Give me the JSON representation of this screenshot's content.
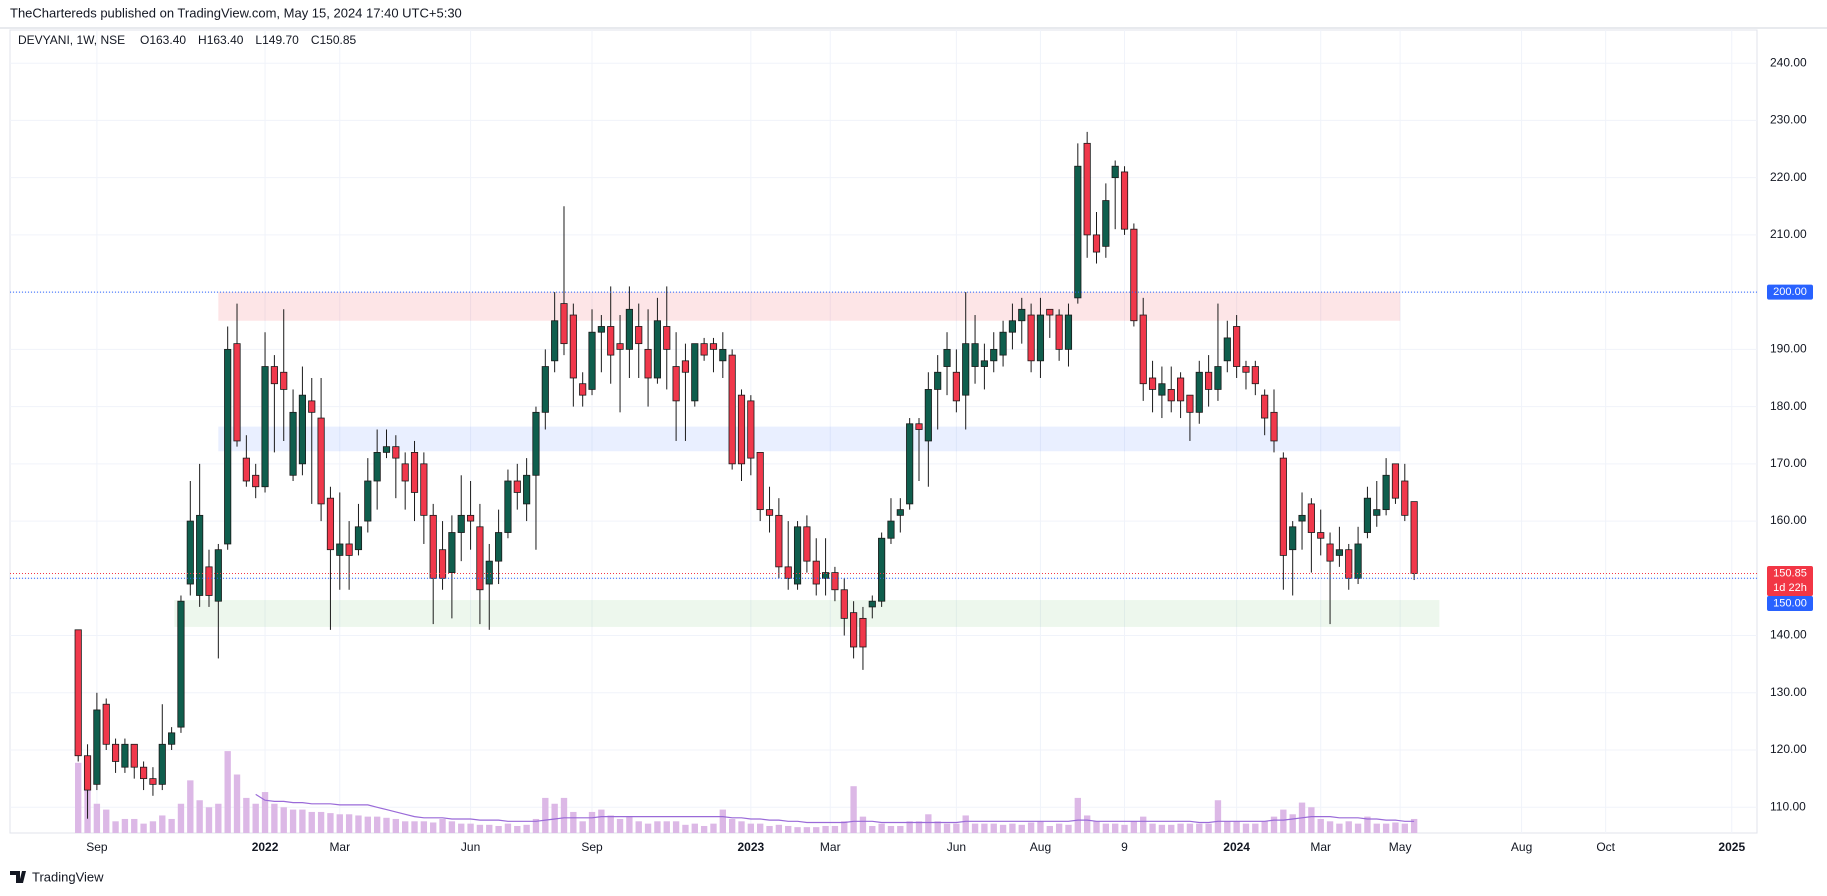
{
  "header": "TheChartereds published on TradingView.com, May 15, 2024 17:40 UTC+5:30",
  "footer": "TradingView",
  "chart_data": {
    "type": "candlestick",
    "symbol": "DEVYANI, 1W, NSE",
    "ohlc_labels": [
      "O163.40",
      "H163.40",
      "L149.70",
      "C150.85"
    ],
    "up_color": "#0f5e4d",
    "down_color": "#f0384b",
    "wick_color": "#1a1a1a",
    "ylim": [
      105.5,
      245.8
    ],
    "yticks": [
      {
        "value": 110,
        "label": "110.00"
      },
      {
        "value": 120,
        "label": "120.00"
      },
      {
        "value": 130,
        "label": "130.00"
      },
      {
        "value": 140,
        "label": "140.00"
      },
      {
        "value": 150,
        "label": "150.00"
      },
      {
        "value": 160,
        "label": "160.00"
      },
      {
        "value": 170,
        "label": "170.00"
      },
      {
        "value": 180,
        "label": "180.00"
      },
      {
        "value": 190,
        "label": "190.00"
      },
      {
        "value": 200,
        "label": "200.00"
      },
      {
        "value": 210,
        "label": "210.00"
      },
      {
        "value": 220,
        "label": "220.00"
      },
      {
        "value": 230,
        "label": "230.00"
      },
      {
        "value": 240,
        "label": "240.00"
      }
    ],
    "xlim": [
      -7.3,
      179.7
    ],
    "xticks": [
      {
        "value": 2,
        "label": "Sep"
      },
      {
        "value": 20,
        "label": "2022"
      },
      {
        "value": 28,
        "label": "Mar"
      },
      {
        "value": 42,
        "label": "Jun"
      },
      {
        "value": 55,
        "label": "Sep"
      },
      {
        "value": 72,
        "label": "2023"
      },
      {
        "value": 80.5,
        "label": "Mar"
      },
      {
        "value": 94,
        "label": "Jun"
      },
      {
        "value": 103,
        "label": "Aug"
      },
      {
        "value": 112,
        "label": "9"
      },
      {
        "value": 124,
        "label": "2024"
      },
      {
        "value": 133,
        "label": "Mar"
      },
      {
        "value": 141.5,
        "label": "May"
      },
      {
        "value": 154.5,
        "label": "Aug"
      },
      {
        "value": 163.5,
        "label": "Oct"
      },
      {
        "value": 177,
        "label": "2025"
      }
    ],
    "grid": true,
    "candles": [
      [
        141,
        141,
        118,
        119
      ],
      [
        119,
        121,
        108,
        113
      ],
      [
        114,
        130,
        113,
        127
      ],
      [
        128,
        129,
        120,
        121
      ],
      [
        121,
        122,
        116,
        118
      ],
      [
        117,
        122,
        116,
        121
      ],
      [
        121,
        121,
        115,
        117
      ],
      [
        117,
        118,
        113,
        115
      ],
      [
        115,
        117,
        112,
        114
      ],
      [
        114,
        128,
        113,
        121
      ],
      [
        121,
        124,
        120,
        123
      ],
      [
        124,
        147,
        123,
        146
      ],
      [
        149,
        167,
        147,
        160
      ],
      [
        147,
        170,
        145,
        161
      ],
      [
        152,
        155,
        145,
        147
      ],
      [
        146,
        156,
        136,
        155
      ],
      [
        156,
        194,
        155,
        190
      ],
      [
        191,
        198,
        173,
        174
      ],
      [
        171,
        175,
        166,
        167
      ],
      [
        168,
        170,
        164,
        166
      ],
      [
        166,
        193,
        165,
        187
      ],
      [
        187,
        189,
        172,
        184
      ],
      [
        186,
        197,
        174,
        183
      ],
      [
        168,
        183,
        167,
        179
      ],
      [
        170,
        187,
        168,
        182
      ],
      [
        181,
        185,
        163,
        179
      ],
      [
        178,
        185,
        160,
        163
      ],
      [
        164,
        166,
        141,
        155
      ],
      [
        154,
        165,
        148,
        156
      ],
      [
        156,
        160,
        148,
        154
      ],
      [
        155,
        163,
        154,
        159
      ],
      [
        160,
        171,
        158,
        167
      ],
      [
        167,
        176,
        162,
        172
      ],
      [
        172,
        176,
        171,
        173
      ],
      [
        173,
        175,
        164,
        171
      ],
      [
        170,
        172,
        162,
        167
      ],
      [
        172,
        174,
        160,
        165
      ],
      [
        170,
        172,
        156,
        161
      ],
      [
        161,
        163,
        142,
        150
      ],
      [
        155,
        160,
        148,
        150
      ],
      [
        151,
        161,
        143,
        158
      ],
      [
        158,
        168,
        153,
        161
      ],
      [
        161,
        167,
        155,
        160
      ],
      [
        159,
        163,
        142,
        148
      ],
      [
        149,
        156,
        141,
        153
      ],
      [
        153,
        162,
        149,
        158
      ],
      [
        158,
        169,
        157,
        167
      ],
      [
        167,
        170,
        162,
        165
      ],
      [
        163,
        171,
        160,
        168
      ],
      [
        168,
        180,
        155,
        179
      ],
      [
        179,
        190,
        176,
        187
      ],
      [
        188,
        200,
        186,
        195
      ],
      [
        198,
        215,
        189,
        191
      ],
      [
        196,
        198,
        180,
        185
      ],
      [
        184,
        186,
        180,
        182
      ],
      [
        183,
        197,
        182,
        193
      ],
      [
        193,
        196,
        186,
        194
      ],
      [
        194,
        201,
        184,
        189
      ],
      [
        191,
        196,
        179,
        190
      ],
      [
        190,
        201,
        185,
        197
      ],
      [
        194,
        198,
        185,
        191
      ],
      [
        190,
        197,
        180,
        185
      ],
      [
        185,
        199,
        184,
        195
      ],
      [
        194,
        201,
        183,
        190
      ],
      [
        187,
        193,
        174,
        181
      ],
      [
        188,
        191,
        174,
        186
      ],
      [
        181,
        191,
        180,
        191
      ],
      [
        191,
        192,
        188,
        189
      ],
      [
        191,
        192,
        186,
        190
      ],
      [
        188,
        193,
        185,
        190
      ],
      [
        189,
        190,
        169,
        170
      ],
      [
        182,
        183,
        167,
        170
      ],
      [
        181,
        182,
        168,
        171
      ],
      [
        172,
        172,
        160,
        162
      ],
      [
        162,
        166,
        158,
        161
      ],
      [
        161,
        164,
        150,
        152
      ],
      [
        152,
        160,
        148,
        150
      ],
      [
        149,
        160,
        148,
        159
      ],
      [
        159,
        161,
        151,
        153
      ],
      [
        153,
        157,
        147,
        149
      ],
      [
        150,
        157,
        147,
        151
      ],
      [
        151,
        152,
        146,
        148
      ],
      [
        148,
        150,
        140,
        143
      ],
      [
        144,
        146,
        136,
        138
      ],
      [
        143,
        145,
        134,
        138
      ],
      [
        145,
        147,
        143,
        146
      ],
      [
        146,
        158,
        145,
        157
      ],
      [
        157,
        164,
        156,
        160
      ],
      [
        161,
        164,
        158,
        162
      ],
      [
        163,
        178,
        162,
        177
      ],
      [
        177,
        178,
        167,
        176
      ],
      [
        174,
        186,
        166,
        183
      ],
      [
        183,
        189,
        176,
        186
      ],
      [
        187,
        193,
        182,
        190
      ],
      [
        186,
        190,
        179,
        181
      ],
      [
        182,
        200,
        176,
        191
      ],
      [
        187,
        196,
        184,
        191
      ],
      [
        187,
        191,
        183,
        188
      ],
      [
        188,
        193,
        186,
        190
      ],
      [
        189,
        195,
        187,
        193
      ],
      [
        193,
        198,
        190,
        195
      ],
      [
        195,
        199,
        191,
        197
      ],
      [
        196,
        198,
        186,
        188
      ],
      [
        188,
        199,
        185,
        196
      ],
      [
        197,
        197,
        192,
        196
      ],
      [
        196,
        197,
        188,
        190
      ],
      [
        190,
        198,
        187,
        196
      ],
      [
        199,
        226,
        198,
        222
      ],
      [
        226,
        228,
        206,
        210
      ],
      [
        210,
        214,
        205,
        207
      ],
      [
        208,
        219,
        206,
        216
      ],
      [
        220,
        223,
        211,
        222
      ],
      [
        221,
        222,
        210,
        211
      ],
      [
        211,
        212,
        194,
        195
      ],
      [
        196,
        199,
        181,
        184
      ],
      [
        185,
        188,
        179,
        183
      ],
      [
        182,
        187,
        178,
        184
      ],
      [
        183,
        187,
        179,
        181
      ],
      [
        185,
        186,
        178,
        181
      ],
      [
        182,
        182,
        174,
        179
      ],
      [
        179,
        188,
        177,
        186
      ],
      [
        186,
        189,
        180,
        183
      ],
      [
        183,
        198,
        181,
        187
      ],
      [
        188,
        195,
        186,
        192
      ],
      [
        194,
        196,
        185,
        187
      ],
      [
        187,
        188,
        183,
        186
      ],
      [
        187,
        188,
        182,
        184
      ],
      [
        182,
        183,
        175,
        178
      ],
      [
        179,
        183,
        172,
        174
      ],
      [
        171,
        172,
        148,
        154
      ],
      [
        155,
        160,
        147,
        159
      ],
      [
        160,
        165,
        155,
        161
      ],
      [
        163,
        164,
        151,
        158
      ],
      [
        158,
        162,
        154,
        157
      ],
      [
        156,
        158,
        142,
        153
      ],
      [
        154,
        159,
        152,
        155
      ],
      [
        155,
        156,
        148,
        150
      ],
      [
        150,
        159,
        149,
        156
      ],
      [
        158,
        166,
        157,
        164
      ],
      [
        161,
        167,
        159,
        162
      ],
      [
        162,
        171,
        161,
        168
      ],
      [
        170,
        170,
        163,
        164
      ],
      [
        167,
        170,
        160,
        161
      ],
      [
        163.4,
        163.4,
        149.7,
        150.85
      ]
    ],
    "volume_color": "#dcb8e6",
    "volume_ma_color": "#9a6ad8",
    "volume_ylim": [
      0,
      100
    ],
    "volume": [
      60,
      40,
      25,
      20,
      10,
      12,
      12,
      8,
      10,
      15,
      12,
      25,
      45,
      28,
      22,
      25,
      70,
      50,
      30,
      25,
      35,
      25,
      22,
      20,
      20,
      18,
      18,
      17,
      16,
      16,
      15,
      14,
      14,
      13,
      12,
      10,
      10,
      10,
      9,
      12,
      10,
      8,
      8,
      7,
      7,
      6,
      8,
      6,
      7,
      12,
      30,
      25,
      30,
      18,
      10,
      18,
      20,
      15,
      12,
      14,
      10,
      8,
      10,
      10,
      10,
      7,
      8,
      6,
      8,
      20,
      12,
      10,
      8,
      8,
      6,
      7,
      6,
      5,
      5,
      5,
      6,
      6,
      10,
      40,
      14,
      6,
      8,
      6,
      6,
      10,
      10,
      16,
      10,
      8,
      8,
      15,
      8,
      8,
      8,
      7,
      8,
      7,
      9,
      10,
      6,
      8,
      7,
      30,
      15,
      10,
      8,
      8,
      7,
      10,
      14,
      8,
      7,
      7,
      8,
      8,
      8,
      8,
      28,
      10,
      10,
      8,
      8,
      10,
      14,
      20,
      16,
      26,
      22,
      12,
      10,
      8,
      10,
      8,
      14,
      8,
      8,
      9,
      8,
      12
    ],
    "volume_ma": [
      null,
      null,
      null,
      null,
      null,
      null,
      null,
      null,
      null,
      null,
      null,
      null,
      null,
      null,
      null,
      null,
      null,
      null,
      null,
      33,
      28,
      27,
      27,
      26,
      26,
      25,
      25,
      25,
      24,
      24,
      24,
      24,
      22,
      20,
      18,
      16,
      14,
      13,
      13,
      13,
      12,
      12,
      12,
      11,
      11,
      11,
      10,
      10,
      10,
      10,
      11,
      12,
      13,
      13,
      13,
      13,
      14,
      14,
      14,
      14,
      14,
      14,
      14,
      14,
      14,
      14,
      14,
      14,
      14,
      14,
      13,
      13,
      12,
      12,
      11,
      11,
      10,
      10,
      9,
      9,
      9,
      9,
      9,
      10,
      10,
      10,
      9,
      9,
      9,
      9,
      9,
      9,
      9,
      9,
      9,
      10,
      10,
      10,
      10,
      10,
      10,
      10,
      10,
      10,
      10,
      10,
      10,
      11,
      11,
      10,
      10,
      10,
      10,
      10,
      10,
      10,
      10,
      10,
      10,
      10,
      9,
      9,
      10,
      10,
      10,
      10,
      10,
      10,
      11,
      11,
      12,
      13,
      14,
      14,
      14,
      13,
      13,
      13,
      12,
      12,
      11,
      11,
      10,
      10
    ],
    "zones": [
      {
        "from": 15,
        "to": 141.5,
        "low": 195,
        "high": 200,
        "color": "rgba(242,54,69,0.13)"
      },
      {
        "from": 15,
        "to": 141.5,
        "low": 172.2,
        "high": 176.5,
        "color": "rgba(41,98,255,0.10)"
      },
      {
        "from": 10.3,
        "to": 145.7,
        "low": 141.5,
        "high": 146.2,
        "color": "rgba(76,175,80,0.10)"
      }
    ],
    "price_lines": [
      {
        "value": 200,
        "label": "200.00",
        "color": "#2962ff"
      },
      {
        "value": 150.85,
        "label": "150.85",
        "countdown": "1d 22h",
        "color": "#f23645"
      },
      {
        "value": 150,
        "label": "150.00",
        "color": "#2962ff"
      }
    ]
  }
}
